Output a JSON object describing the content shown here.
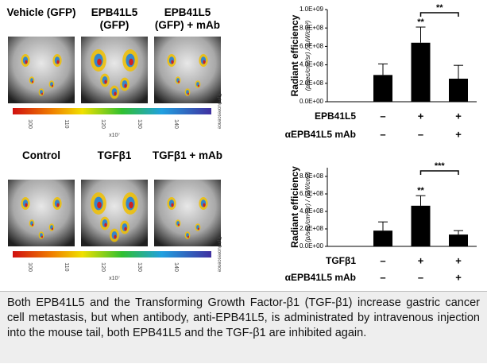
{
  "image_panels": [
    {
      "labels": [
        "Vehicle (GFP)",
        "EPB41L5 (GFP)",
        "EPB41L5 (GFP) + mAb"
      ],
      "colorbar_label": "Epi-fluorescence",
      "colorbar_unit": "x10⁷",
      "colorbar_ticks": [
        "100",
        "110",
        "120",
        "130",
        "140"
      ]
    },
    {
      "labels": [
        "Control",
        "TGFβ1",
        "TGFβ1 + mAb"
      ],
      "colorbar_label": "Epi-fluorescence",
      "colorbar_unit": "x10⁷",
      "colorbar_ticks": [
        "100",
        "110",
        "120",
        "130",
        "140"
      ]
    }
  ],
  "chart_data": [
    {
      "type": "bar",
      "y_label": "Radiant efficiency",
      "y_unit": "(p/sec/cm²/sr) / (µW/cm²)",
      "color": "#000000",
      "categories": [
        null,
        null,
        null
      ],
      "values": [
        290000000,
        640000000,
        250000000
      ],
      "errors": [
        120000000,
        170000000,
        145000000
      ],
      "ylim": [
        0,
        1000000000
      ],
      "yticks": [
        {
          "value": 0,
          "label": "0.0E+00"
        },
        {
          "value": 200000000,
          "label": "2.0E+08"
        },
        {
          "value": 400000000,
          "label": "4.0E+08"
        },
        {
          "value": 600000000,
          "label": "6.0E+08"
        },
        {
          "value": 800000000,
          "label": "8.0E+08"
        },
        {
          "value": 1000000000,
          "label": "1.0E+09"
        }
      ],
      "annotations": [
        {
          "bar": 1,
          "text": "**"
        }
      ],
      "bracket": {
        "from": 1,
        "to": 2,
        "text": "**"
      },
      "conditions": [
        {
          "label": "EPB41L5",
          "marks": [
            "–",
            "+",
            "+"
          ]
        },
        {
          "label": "αEPB41L5 mAb",
          "marks": [
            "–",
            "–",
            "+"
          ]
        }
      ]
    },
    {
      "type": "bar",
      "y_label": "Radiant efficiency",
      "y_unit": "(p/sec/cm²/sr) / (µW/cm²)",
      "color": "#000000",
      "categories": [
        null,
        null,
        null
      ],
      "values": [
        180000000,
        465000000,
        135000000
      ],
      "errors": [
        100000000,
        115000000,
        45000000
      ],
      "ylim": [
        0,
        900000000
      ],
      "yticks": [
        {
          "value": 0,
          "label": "0.0E+00"
        },
        {
          "value": 200000000,
          "label": "2.0E+08"
        },
        {
          "value": 400000000,
          "label": "4.0E+08"
        },
        {
          "value": 600000000,
          "label": "6.0E+08"
        },
        {
          "value": 800000000,
          "label": "8.0E+08"
        }
      ],
      "annotations": [
        {
          "bar": 1,
          "text": "**"
        }
      ],
      "bracket": {
        "from": 1,
        "to": 2,
        "text": "***"
      },
      "conditions": [
        {
          "label": "TGFβ1",
          "marks": [
            "–",
            "+",
            "+"
          ]
        },
        {
          "label": "αEPB41L5 mAb",
          "marks": [
            "–",
            "–",
            "+"
          ]
        }
      ]
    }
  ],
  "caption": "Both EPB41L5 and the Transforming Growth Factor-β1 (TGF-β1) increase gastric cancer cell metastasis, but when antibody, anti-EPB41L5, is administrated by intravenous injection into the mouse tail, both EPB41L5 and the TGF-β1 are inhibited again."
}
